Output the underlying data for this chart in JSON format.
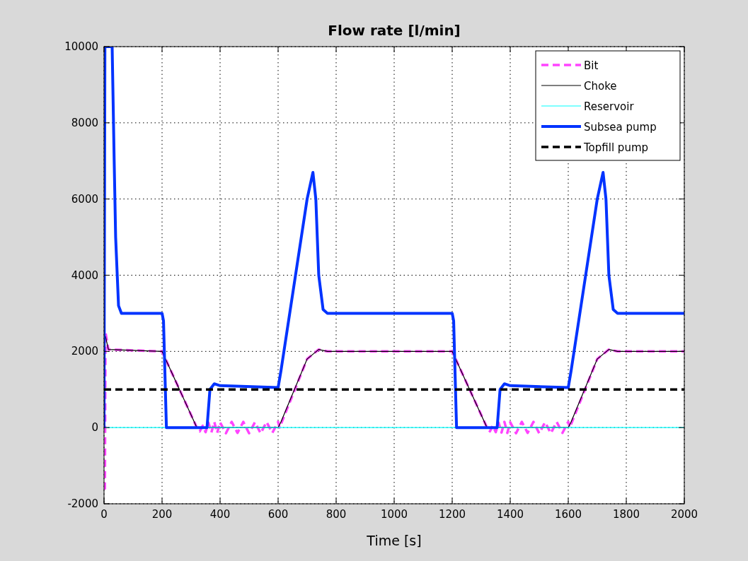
{
  "chart_data": {
    "type": "line",
    "title": "Flow rate [l/min]",
    "xlabel": "Time [s]",
    "xlim": [
      0,
      2000
    ],
    "xticks": [
      0,
      200,
      400,
      600,
      800,
      1000,
      1200,
      1400,
      1600,
      1800,
      2000
    ],
    "ylim": [
      -2000,
      10000
    ],
    "yticks": [
      -2000,
      0,
      2000,
      4000,
      6000,
      8000,
      10000
    ],
    "grid": true,
    "legend": "top right",
    "series": [
      {
        "name": "Bit",
        "color": "#ff44ff",
        "line_style": "dashed",
        "x": [
          0,
          3,
          5,
          15,
          200,
          320,
          330,
          340,
          350,
          360,
          370,
          380,
          390,
          400,
          420,
          440,
          460,
          480,
          500,
          520,
          540,
          560,
          580,
          600,
          605,
          700,
          740,
          770,
          1200,
          1320,
          1330,
          1340,
          1350,
          1360,
          1370,
          1380,
          1390,
          1400,
          1420,
          1440,
          1460,
          1480,
          1500,
          1520,
          1540,
          1560,
          1580,
          1600,
          1605,
          1700,
          1740,
          1770,
          2000
        ],
        "values": [
          -1600,
          -1600,
          2500,
          2050,
          2000,
          0,
          -100,
          50,
          -120,
          130,
          -130,
          150,
          -140,
          140,
          -150,
          150,
          -140,
          150,
          -150,
          140,
          -150,
          150,
          -140,
          150,
          0,
          1800,
          2050,
          2000,
          2000,
          0,
          -100,
          50,
          -120,
          130,
          -130,
          150,
          -140,
          140,
          -150,
          150,
          -140,
          150,
          -150,
          140,
          -150,
          150,
          -140,
          150,
          0,
          1800,
          2050,
          2000,
          2000
        ]
      },
      {
        "name": "Choke",
        "color": "#000000",
        "line_style": "solid",
        "x": [
          5,
          15,
          200,
          320,
          360,
          600,
          610,
          700,
          740,
          770,
          1200,
          1320,
          1360,
          1600,
          1610,
          1700,
          1740,
          1770,
          2000
        ],
        "values": [
          2400,
          2050,
          2000,
          0,
          0,
          0,
          150,
          1800,
          2050,
          2000,
          2000,
          0,
          0,
          0,
          150,
          1800,
          2050,
          2000,
          2000
        ]
      },
      {
        "name": "Reservoir",
        "color": "#00ffff",
        "line_style": "solid",
        "x": [
          0,
          2000
        ],
        "values": [
          0,
          0
        ]
      },
      {
        "name": "Subsea pump",
        "color": "#0033ff",
        "line_style": "solid",
        "x": [
          0,
          3,
          28,
          35,
          40,
          50,
          60,
          200,
          205,
          215,
          355,
          365,
          380,
          400,
          600,
          610,
          620,
          700,
          720,
          730,
          740,
          755,
          770,
          1200,
          1205,
          1215,
          1355,
          1365,
          1380,
          1400,
          1600,
          1610,
          1620,
          1700,
          1720,
          1730,
          1740,
          1755,
          1770,
          2000
        ],
        "values": [
          0,
          10000,
          10000,
          7000,
          5000,
          3200,
          3000,
          3000,
          2800,
          0,
          0,
          1000,
          1150,
          1100,
          1050,
          1500,
          2000,
          6000,
          6700,
          6000,
          4000,
          3100,
          3000,
          3000,
          2800,
          0,
          0,
          1000,
          1150,
          1100,
          1050,
          1500,
          2000,
          6000,
          6700,
          6000,
          4000,
          3100,
          3000,
          3000
        ]
      },
      {
        "name": "Topfill pump",
        "color": "#000000",
        "line_style": "dashed",
        "x": [
          0,
          2000
        ],
        "values": [
          1000,
          1000
        ]
      }
    ]
  }
}
